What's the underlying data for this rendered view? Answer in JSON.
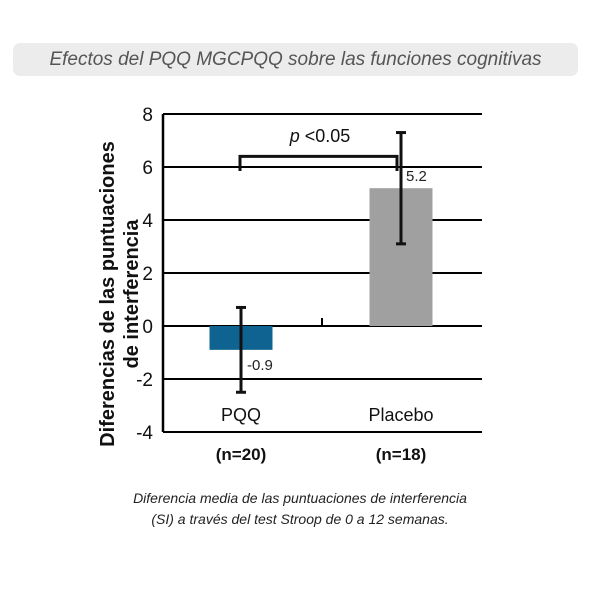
{
  "banner_title": "Efectos del PQQ MGCPQQ sobre las funciones cognitivas",
  "caption_line1": "Diferencia media de las puntuaciones de interferencia",
  "caption_line2": "(SI) a través del test Stroop de 0 a 12 semanas.",
  "chart_data": {
    "type": "bar",
    "title": "Efectos del PQQ MGCPQQ sobre las funciones cognitivas",
    "ylabel_line1": "Diferencias de las puntuaciones",
    "ylabel_line2": "de interferencia",
    "xlabel": "",
    "ylim": [
      -4,
      8
    ],
    "yticks": [
      -4,
      -2,
      0,
      2,
      4,
      6,
      8
    ],
    "grid": true,
    "categories": [
      "PQQ",
      "Placebo"
    ],
    "sample_sizes": [
      "(n=20)",
      "(n=18)"
    ],
    "values": [
      -0.9,
      5.2
    ],
    "value_labels": [
      "-0.9",
      "5.2"
    ],
    "error_low": [
      -2.5,
      3.1
    ],
    "error_high": [
      0.7,
      7.3
    ],
    "colors": [
      "#0f6391",
      "#a0a0a0"
    ],
    "significance": {
      "label_p": "p",
      "label_rest": " <0.05",
      "level": 6.4
    }
  }
}
